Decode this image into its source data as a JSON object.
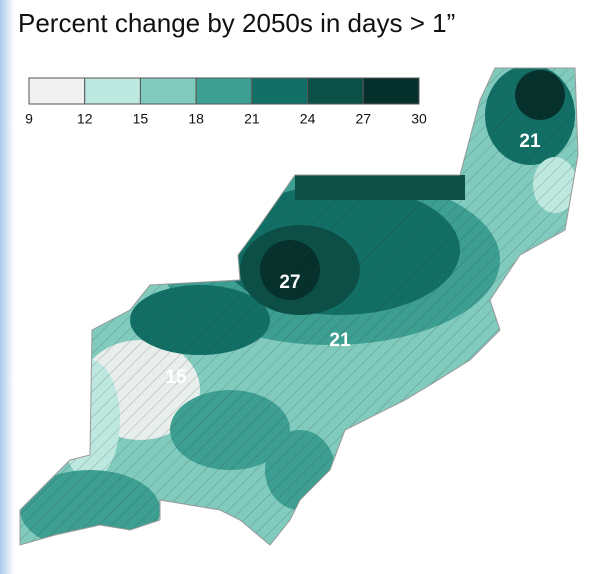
{
  "title": "Percent change by 2050s in days > 1”",
  "legend": {
    "ticks": [
      9,
      12,
      15,
      18,
      21,
      24,
      27,
      30
    ],
    "colors": [
      "#f1f1f1",
      "#bde8df",
      "#80cbbd",
      "#3d9f91",
      "#116f65",
      "#0c4f47",
      "#06302b"
    ]
  },
  "map": {
    "labels": [
      "21",
      "27",
      "21",
      "15"
    ]
  }
}
